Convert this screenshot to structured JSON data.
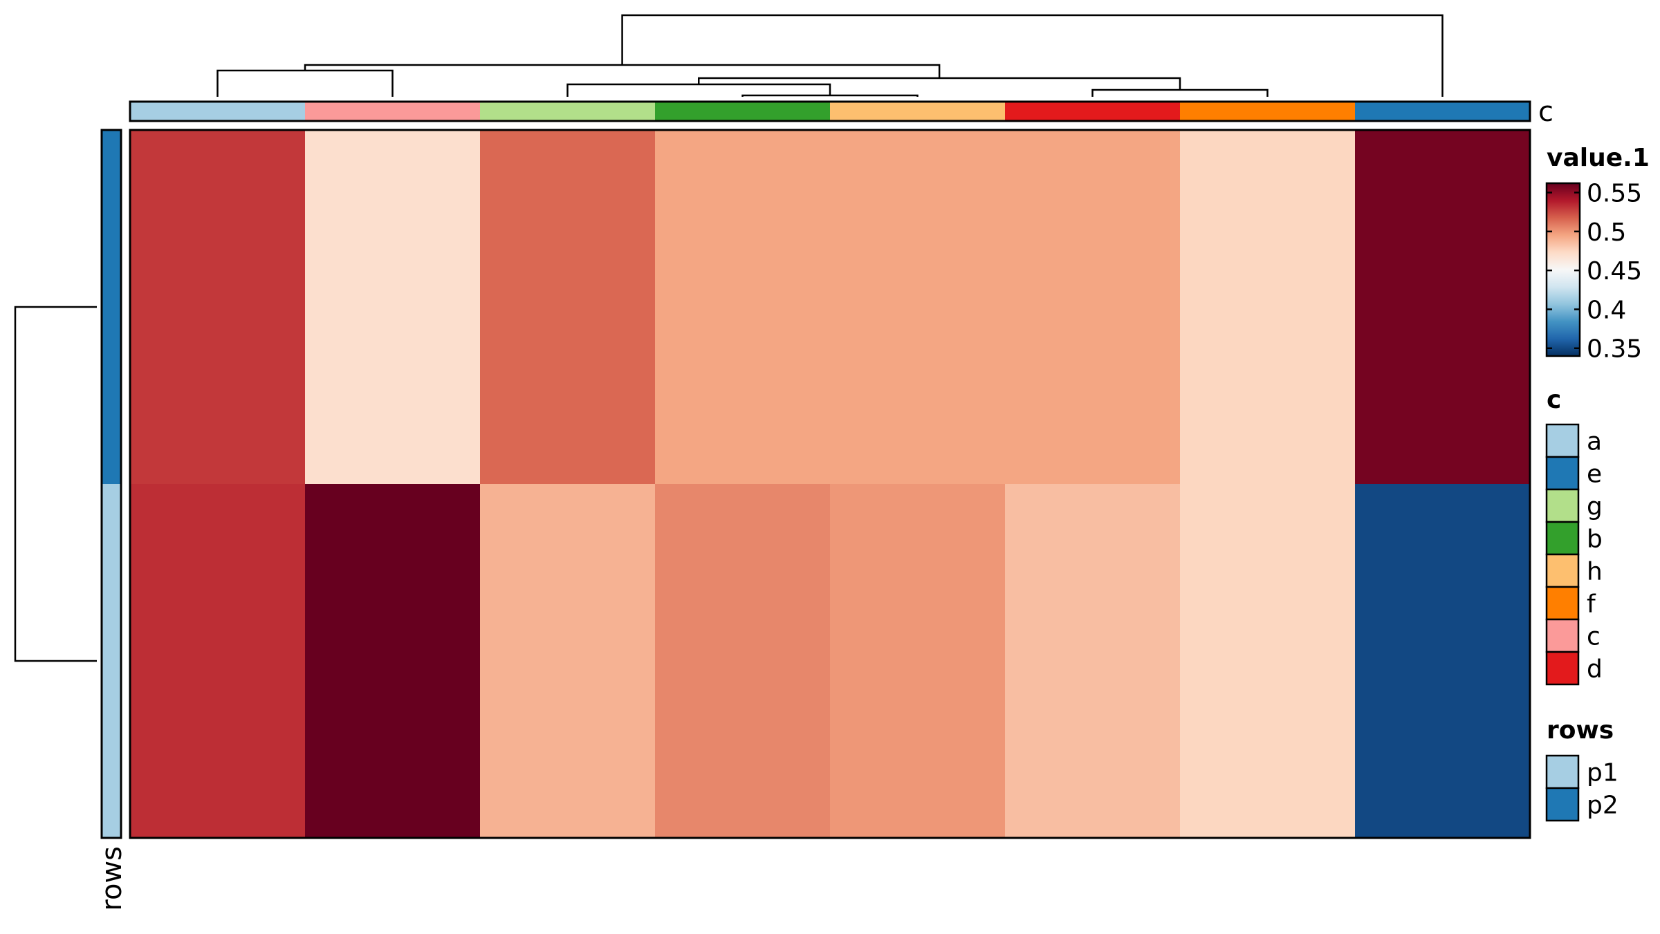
{
  "chart_data": {
    "type": "heatmap",
    "columns": [
      "a",
      "c",
      "g",
      "b",
      "h",
      "d",
      "f",
      "e"
    ],
    "rows": [
      "p2",
      "p1"
    ],
    "values": [
      [
        0.53,
        0.47,
        0.515,
        0.495,
        0.495,
        0.495,
        0.475,
        0.558
      ],
      [
        0.533,
        0.565,
        0.49,
        0.505,
        0.5,
        0.485,
        0.475,
        0.35
      ]
    ],
    "color_scale": {
      "title": "value.1",
      "range": [
        0.34,
        0.562
      ],
      "ticks": [
        "0.55",
        "0.5",
        "0.45",
        "0.4",
        "0.35"
      ],
      "tick_values": [
        0.55,
        0.5,
        0.45,
        0.4,
        0.35
      ],
      "palette": "RdBu (reversed)"
    },
    "column_annotation": {
      "name": "c",
      "legend_title": "c",
      "legend_order": [
        "a",
        "e",
        "g",
        "b",
        "h",
        "f",
        "c",
        "d"
      ],
      "colors": {
        "a": "#a6cee3",
        "e": "#1f78b4",
        "g": "#b2df8a",
        "b": "#33a02c",
        "h": "#fdbf6f",
        "f": "#ff7f00",
        "c": "#fb9a99",
        "d": "#e31a1c"
      }
    },
    "row_annotation": {
      "name": "rows",
      "legend_title": "rows",
      "legend_order": [
        "p1",
        "p2"
      ],
      "colors": {
        "p1": "#a6cee3",
        "p2": "#1f78b4"
      }
    },
    "column_dendrogram": [
      [
        0,
        1,
        0.17
      ],
      [
        5,
        6,
        0.07
      ],
      [
        3,
        4,
        0.04
      ],
      [
        3,
        4,
        0.04
      ],
      [
        2,
        3,
        0.12
      ],
      [
        5,
        6,
        0.11
      ]
    ]
  }
}
